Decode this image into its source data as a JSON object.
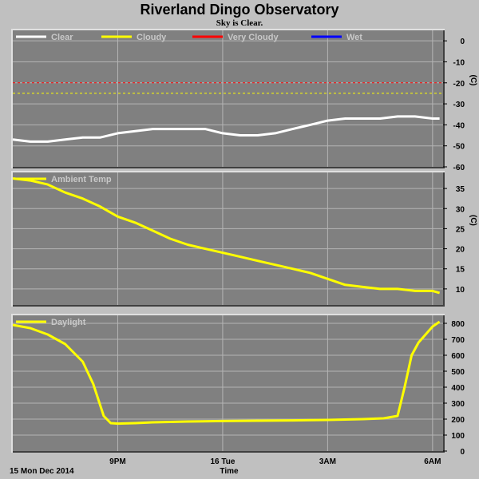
{
  "title": "Riverland Dingo Observatory",
  "subtitle": "Sky is Clear.",
  "footer": {
    "date_label": "15 Mon Dec 2014",
    "xlabel": "Time"
  },
  "colors": {
    "background": "#c0c0c0",
    "plot_bg": "#808080",
    "grid": "#b4b4b4",
    "clear": "#ffffff",
    "cloudy": "#ffff00",
    "very_cloudy": "#ff0000",
    "wet": "#0000ff"
  },
  "x_ticks": [
    {
      "label": "9PM",
      "hour": 3
    },
    {
      "label": "16 Tue",
      "hour": 6
    },
    {
      "label": "3AM",
      "hour": 9
    },
    {
      "label": "6AM",
      "hour": 12
    }
  ],
  "chart_data": [
    {
      "type": "line",
      "name": "sky",
      "legend": [
        {
          "name": "Clear",
          "color": "#ffffff"
        },
        {
          "name": "Cloudy",
          "color": "#ffff00"
        },
        {
          "name": "Very Cloudy",
          "color": "#ff0000"
        },
        {
          "name": "Wet",
          "color": "#0000ff"
        }
      ],
      "ylabel": "(C)",
      "ylim": [
        -60,
        5
      ],
      "yticks": [
        0,
        -10,
        -20,
        -30,
        -40,
        -50,
        -60
      ],
      "thresholds": [
        {
          "value": -20,
          "color": "#ff0000"
        },
        {
          "value": -25,
          "color": "#ffff00"
        }
      ],
      "series": [
        {
          "name": "Clear",
          "color": "#ffffff",
          "x": [
            0,
            0.5,
            1,
            1.5,
            2,
            2.5,
            3,
            3.5,
            4,
            4.5,
            5,
            5.5,
            6,
            6.5,
            7,
            7.5,
            8,
            8.5,
            9,
            9.5,
            10,
            10.5,
            11,
            11.5,
            12,
            12.2
          ],
          "y": [
            -47,
            -48,
            -48,
            -47,
            -46,
            -46,
            -44,
            -43,
            -42,
            -42,
            -42,
            -42,
            -44,
            -45,
            -45,
            -44,
            -42,
            -40,
            -38,
            -37,
            -37,
            -37,
            -36,
            -36,
            -37,
            -37
          ]
        }
      ]
    },
    {
      "type": "line",
      "name": "ambient",
      "legend": [
        {
          "name": "Ambient Temp",
          "color": "#ffff00"
        }
      ],
      "ylabel": "(C)",
      "ylim": [
        6,
        39
      ],
      "yticks": [
        35,
        30,
        25,
        20,
        15,
        10
      ],
      "series": [
        {
          "name": "Ambient Temp",
          "color": "#ffff00",
          "x": [
            0,
            0.5,
            1,
            1.5,
            2,
            2.5,
            3,
            3.5,
            4,
            4.5,
            5,
            5.5,
            6,
            6.5,
            7,
            7.5,
            8,
            8.5,
            9,
            9.5,
            10,
            10.5,
            11,
            11.5,
            12,
            12.2
          ],
          "y": [
            37.5,
            37,
            36,
            34,
            32.5,
            30.5,
            28,
            26.5,
            24.5,
            22.5,
            21,
            20,
            19,
            18,
            17,
            16,
            15,
            14,
            12.5,
            11,
            10.5,
            10,
            10,
            9.5,
            9.5,
            9
          ]
        }
      ]
    },
    {
      "type": "line",
      "name": "daylight",
      "legend": [
        {
          "name": "Daylight",
          "color": "#ffff00"
        }
      ],
      "ylabel": "",
      "ylim": [
        0,
        850
      ],
      "yticks": [
        800,
        700,
        600,
        500,
        400,
        300,
        200,
        100,
        0
      ],
      "series": [
        {
          "name": "Daylight",
          "color": "#ffff00",
          "x": [
            0,
            0.5,
            1,
            1.5,
            2,
            2.3,
            2.6,
            2.8,
            3,
            3.5,
            4,
            5,
            6,
            7,
            8,
            9,
            10,
            10.6,
            11,
            11.2,
            11.4,
            11.6,
            12,
            12.2
          ],
          "y": [
            790,
            770,
            730,
            670,
            560,
            420,
            220,
            175,
            172,
            175,
            180,
            185,
            188,
            190,
            192,
            195,
            200,
            205,
            220,
            400,
            600,
            680,
            780,
            810
          ]
        }
      ]
    }
  ]
}
